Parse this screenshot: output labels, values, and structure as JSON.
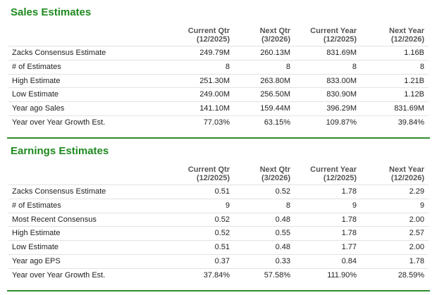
{
  "sections": [
    {
      "title": "Sales Estimates",
      "headers": [
        {
          "line1": "Current Qtr",
          "line2": "(12/2025)"
        },
        {
          "line1": "Next Qtr",
          "line2": "(3/2026)"
        },
        {
          "line1": "Current Year",
          "line2": "(12/2025)"
        },
        {
          "line1": "Next Year",
          "line2": "(12/2026)"
        }
      ],
      "rows": [
        [
          "Zacks Consensus Estimate",
          "249.79M",
          "260.13M",
          "831.69M",
          "1.16B"
        ],
        [
          "# of Estimates",
          "8",
          "8",
          "8",
          "8"
        ],
        [
          "High Estimate",
          "251.30M",
          "263.80M",
          "833.00M",
          "1.21B"
        ],
        [
          "Low Estimate",
          "249.00M",
          "256.50M",
          "830.90M",
          "1.12B"
        ],
        [
          "Year ago Sales",
          "141.10M",
          "159.44M",
          "396.29M",
          "831.69M"
        ],
        [
          "Year over Year Growth Est.",
          "77.03%",
          "63.15%",
          "109.87%",
          "39.84%"
        ]
      ]
    },
    {
      "title": "Earnings Estimates",
      "headers": [
        {
          "line1": "Current Qtr",
          "line2": "(12/2025)"
        },
        {
          "line1": "Next Qtr",
          "line2": "(3/2026)"
        },
        {
          "line1": "Current Year",
          "line2": "(12/2025)"
        },
        {
          "line1": "Next Year",
          "line2": "(12/2026)"
        }
      ],
      "rows": [
        [
          "Zacks Consensus Estimate",
          "0.51",
          "0.52",
          "1.78",
          "2.29"
        ],
        [
          "# of Estimates",
          "9",
          "8",
          "9",
          "9"
        ],
        [
          "Most Recent Consensus",
          "0.52",
          "0.48",
          "1.78",
          "2.00"
        ],
        [
          "High Estimate",
          "0.52",
          "0.55",
          "1.78",
          "2.57"
        ],
        [
          "Low Estimate",
          "0.51",
          "0.48",
          "1.77",
          "2.00"
        ],
        [
          "Year ago EPS",
          "0.37",
          "0.33",
          "0.84",
          "1.78"
        ],
        [
          "Year over Year Growth Est.",
          "37.84%",
          "57.58%",
          "111.90%",
          "28.59%"
        ]
      ]
    }
  ]
}
